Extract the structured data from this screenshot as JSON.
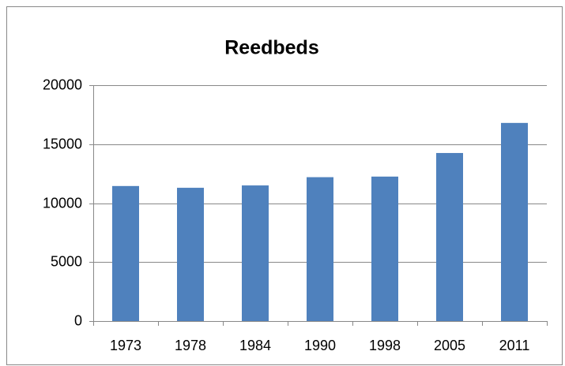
{
  "chart_data": {
    "type": "bar",
    "title": "Reedbeds",
    "categories": [
      "1973",
      "1978",
      "1984",
      "1990",
      "1998",
      "2005",
      "2011"
    ],
    "values": [
      11450,
      11300,
      11500,
      12200,
      12250,
      14250,
      16800
    ],
    "color": "#4f81bd",
    "ylim": [
      0,
      20000
    ],
    "yticks": [
      0,
      5000,
      10000,
      15000,
      20000
    ],
    "grid": true
  }
}
